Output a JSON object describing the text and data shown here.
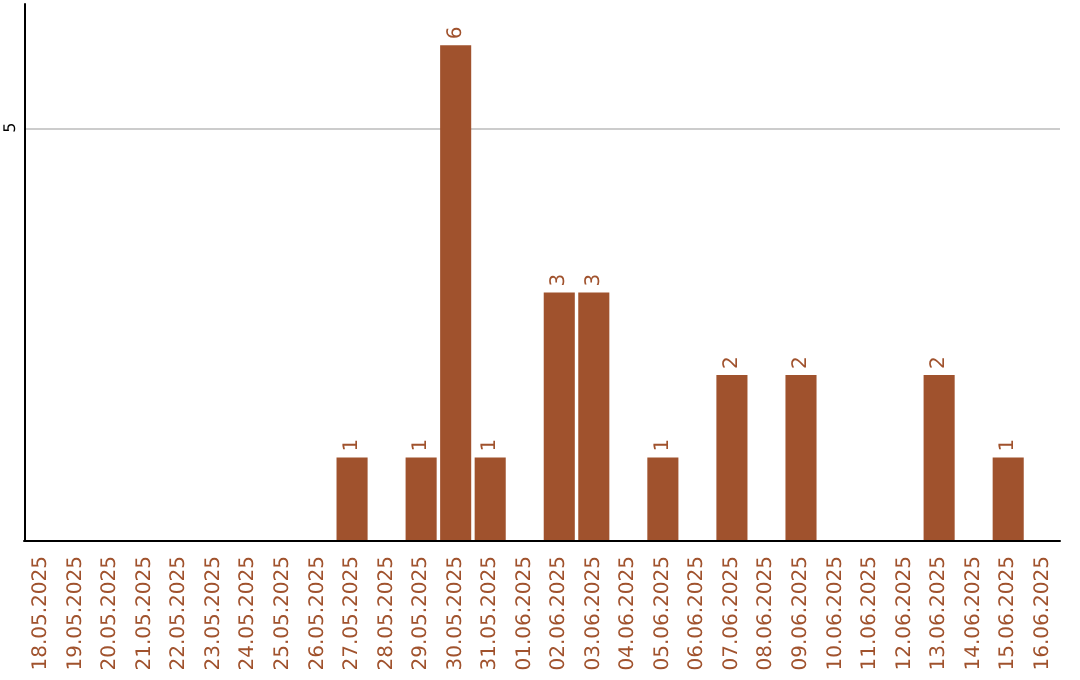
{
  "chart_data": {
    "type": "bar",
    "categories": [
      "18.05.2025",
      "19.05.2025",
      "20.05.2025",
      "21.05.2025",
      "22.05.2025",
      "23.05.2025",
      "24.05.2025",
      "25.05.2025",
      "26.05.2025",
      "27.05.2025",
      "28.05.2025",
      "29.05.2025",
      "30.05.2025",
      "31.05.2025",
      "01.06.2025",
      "02.06.2025",
      "03.06.2025",
      "04.06.2025",
      "05.06.2025",
      "06.06.2025",
      "07.06.2025",
      "08.06.2025",
      "09.06.2025",
      "10.06.2025",
      "11.06.2025",
      "12.06.2025",
      "13.06.2025",
      "14.06.2025",
      "15.06.2025",
      "16.06.2025"
    ],
    "values": [
      0,
      0,
      0,
      0,
      0,
      0,
      0,
      0,
      0,
      1,
      0,
      1,
      6,
      1,
      0,
      3,
      3,
      0,
      1,
      0,
      2,
      0,
      2,
      0,
      0,
      0,
      2,
      0,
      1,
      0
    ],
    "value_labels": [
      null,
      null,
      null,
      null,
      null,
      null,
      null,
      null,
      null,
      "1",
      null,
      "1",
      "6",
      "1",
      null,
      "3",
      "3",
      null,
      "1",
      null,
      "2",
      null,
      "2",
      null,
      null,
      null,
      "2",
      null,
      "1",
      null
    ],
    "color": "#a0522d",
    "ylim": [
      0,
      6.5
    ],
    "yticks": [
      {
        "value": 0,
        "label": null
      },
      5
    ],
    "grid": "y"
  }
}
